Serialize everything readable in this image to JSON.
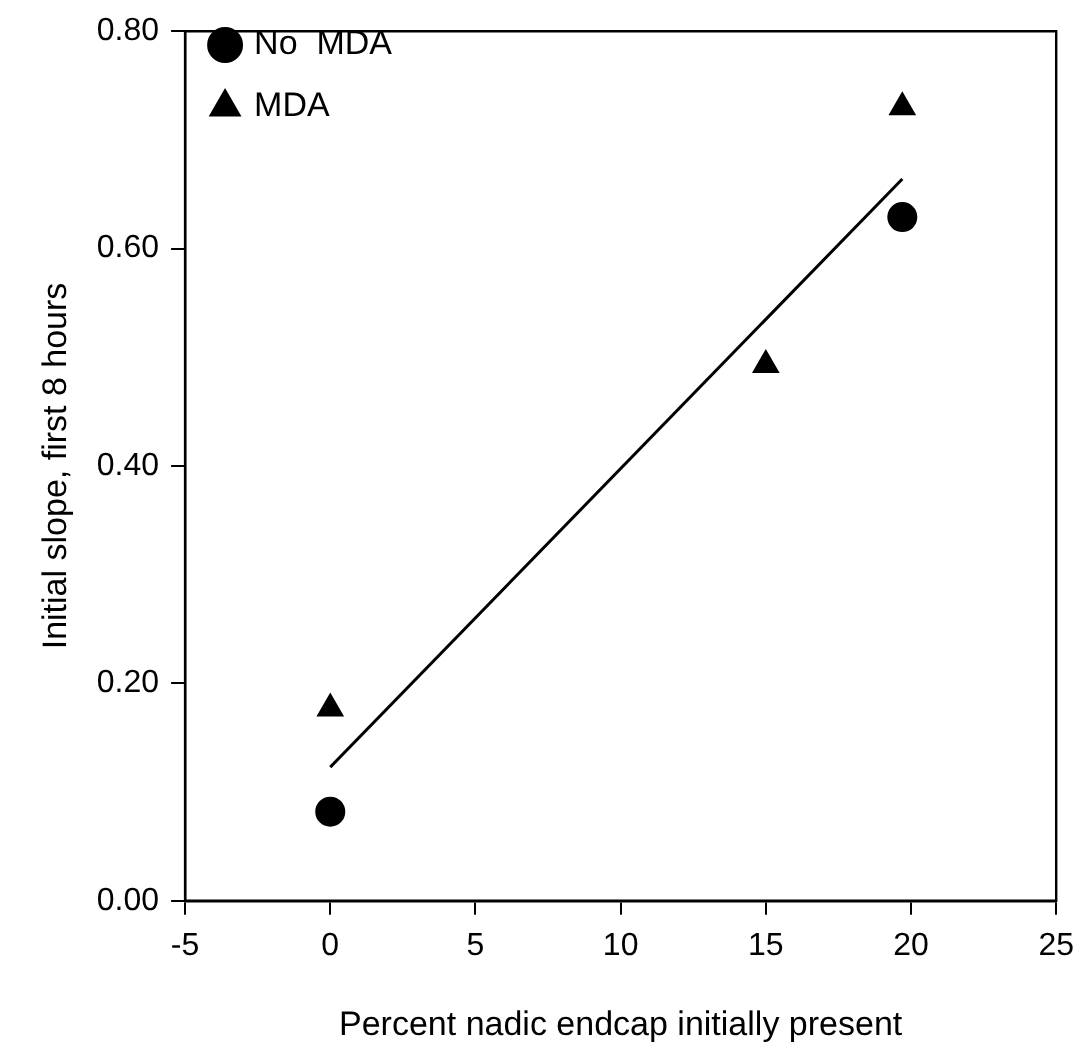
{
  "chart_data": {
    "type": "scatter",
    "xlabel": "Percent nadic endcap initially present",
    "ylabel": "Initial slope, first 8 hours",
    "xlim": [
      -5,
      25
    ],
    "xticks": [
      -5,
      0,
      5,
      10,
      15,
      20,
      25
    ],
    "ylim": [
      0,
      0.8
    ],
    "yticks": [
      {
        "value": 0,
        "label": "0.00"
      },
      {
        "value": 0.2,
        "label": "0.20"
      },
      {
        "value": 0.4,
        "label": "0.40"
      },
      {
        "value": 0.6,
        "label": "0.60"
      },
      {
        "value": 0.8,
        "label": "0.80"
      }
    ],
    "grid": false,
    "legend": "top left",
    "series": [
      {
        "name": "No  MDA",
        "marker": "circle",
        "color": "#000000",
        "x": [
          0,
          19.7
        ],
        "values": [
          0.082,
          0.629
        ]
      },
      {
        "name": "MDA",
        "marker": "triangle",
        "color": "#000000",
        "x": [
          0,
          15,
          19.7
        ],
        "values": [
          0.177,
          0.493,
          0.73
        ]
      },
      {
        "type": "line",
        "marker": "none",
        "line_style": "solid",
        "color": "#000000",
        "x": [
          0,
          19.7
        ],
        "values": [
          0.123,
          0.664
        ]
      }
    ]
  }
}
